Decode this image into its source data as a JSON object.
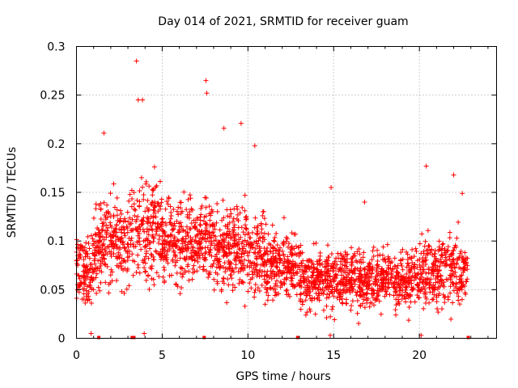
{
  "chart_data": {
    "type": "scatter",
    "title": "Day 014 of 2021, SRMTID for receiver guam",
    "xlabel": "GPS time / hours",
    "ylabel": "SRMTID / TECUs",
    "xlim": [
      0,
      24.5
    ],
    "ylim": [
      0,
      0.3
    ],
    "x_ticks": [
      {
        "value": 0,
        "label": "0"
      },
      {
        "value": 5,
        "label": "5"
      },
      {
        "value": 10,
        "label": "10"
      },
      {
        "value": 15,
        "label": "15"
      },
      {
        "value": 20,
        "label": "20"
      }
    ],
    "y_ticks": [
      {
        "value": 0,
        "label": "0"
      },
      {
        "value": 0.05,
        "label": "0.05"
      },
      {
        "value": 0.1,
        "label": "0.1"
      },
      {
        "value": 0.15,
        "label": "0.15"
      },
      {
        "value": 0.2,
        "label": "0.2"
      },
      {
        "value": 0.25,
        "label": "0.25"
      },
      {
        "value": 0.3,
        "label": "0.3"
      }
    ],
    "grid": true,
    "marker": "plus",
    "color": "#ff0000",
    "series": [
      {
        "name": "SRMTID",
        "notable_points": [
          {
            "x": 3.5,
            "y": 0.285
          },
          {
            "x": 7.55,
            "y": 0.265
          },
          {
            "x": 7.6,
            "y": 0.252
          },
          {
            "x": 3.6,
            "y": 0.245
          },
          {
            "x": 3.85,
            "y": 0.245
          },
          {
            "x": 9.6,
            "y": 0.221
          },
          {
            "x": 8.6,
            "y": 0.216
          },
          {
            "x": 1.6,
            "y": 0.211
          },
          {
            "x": 10.4,
            "y": 0.198
          },
          {
            "x": 20.4,
            "y": 0.177
          },
          {
            "x": 22.0,
            "y": 0.168
          },
          {
            "x": 14.85,
            "y": 0.155
          },
          {
            "x": 16.8,
            "y": 0.14
          },
          {
            "x": 22.5,
            "y": 0.149
          },
          {
            "x": 0.85,
            "y": 0.005
          },
          {
            "x": 3.95,
            "y": 0.005
          },
          {
            "x": 14.8,
            "y": 0.003
          },
          {
            "x": 20.1,
            "y": 0.003
          }
        ],
        "time_profile": [
          {
            "from": 0.0,
            "to": 1.0,
            "center": 0.07,
            "spread": 0.045
          },
          {
            "from": 1.0,
            "to": 3.0,
            "center": 0.1,
            "spread": 0.05
          },
          {
            "from": 3.0,
            "to": 5.0,
            "center": 0.11,
            "spread": 0.06
          },
          {
            "from": 5.0,
            "to": 8.0,
            "center": 0.1,
            "spread": 0.05
          },
          {
            "from": 8.0,
            "to": 11.0,
            "center": 0.09,
            "spread": 0.05
          },
          {
            "from": 11.0,
            "to": 13.0,
            "center": 0.075,
            "spread": 0.04
          },
          {
            "from": 13.0,
            "to": 17.0,
            "center": 0.06,
            "spread": 0.035
          },
          {
            "from": 17.0,
            "to": 20.0,
            "center": 0.06,
            "spread": 0.035
          },
          {
            "from": 20.0,
            "to": 22.8,
            "center": 0.07,
            "spread": 0.04
          }
        ],
        "bulk_point_count": 2600
      },
      {
        "name": "no-data markers",
        "y": 0,
        "x": [
          1.3,
          3.25,
          3.35,
          7.45,
          12.9,
          22.85
        ]
      }
    ]
  }
}
